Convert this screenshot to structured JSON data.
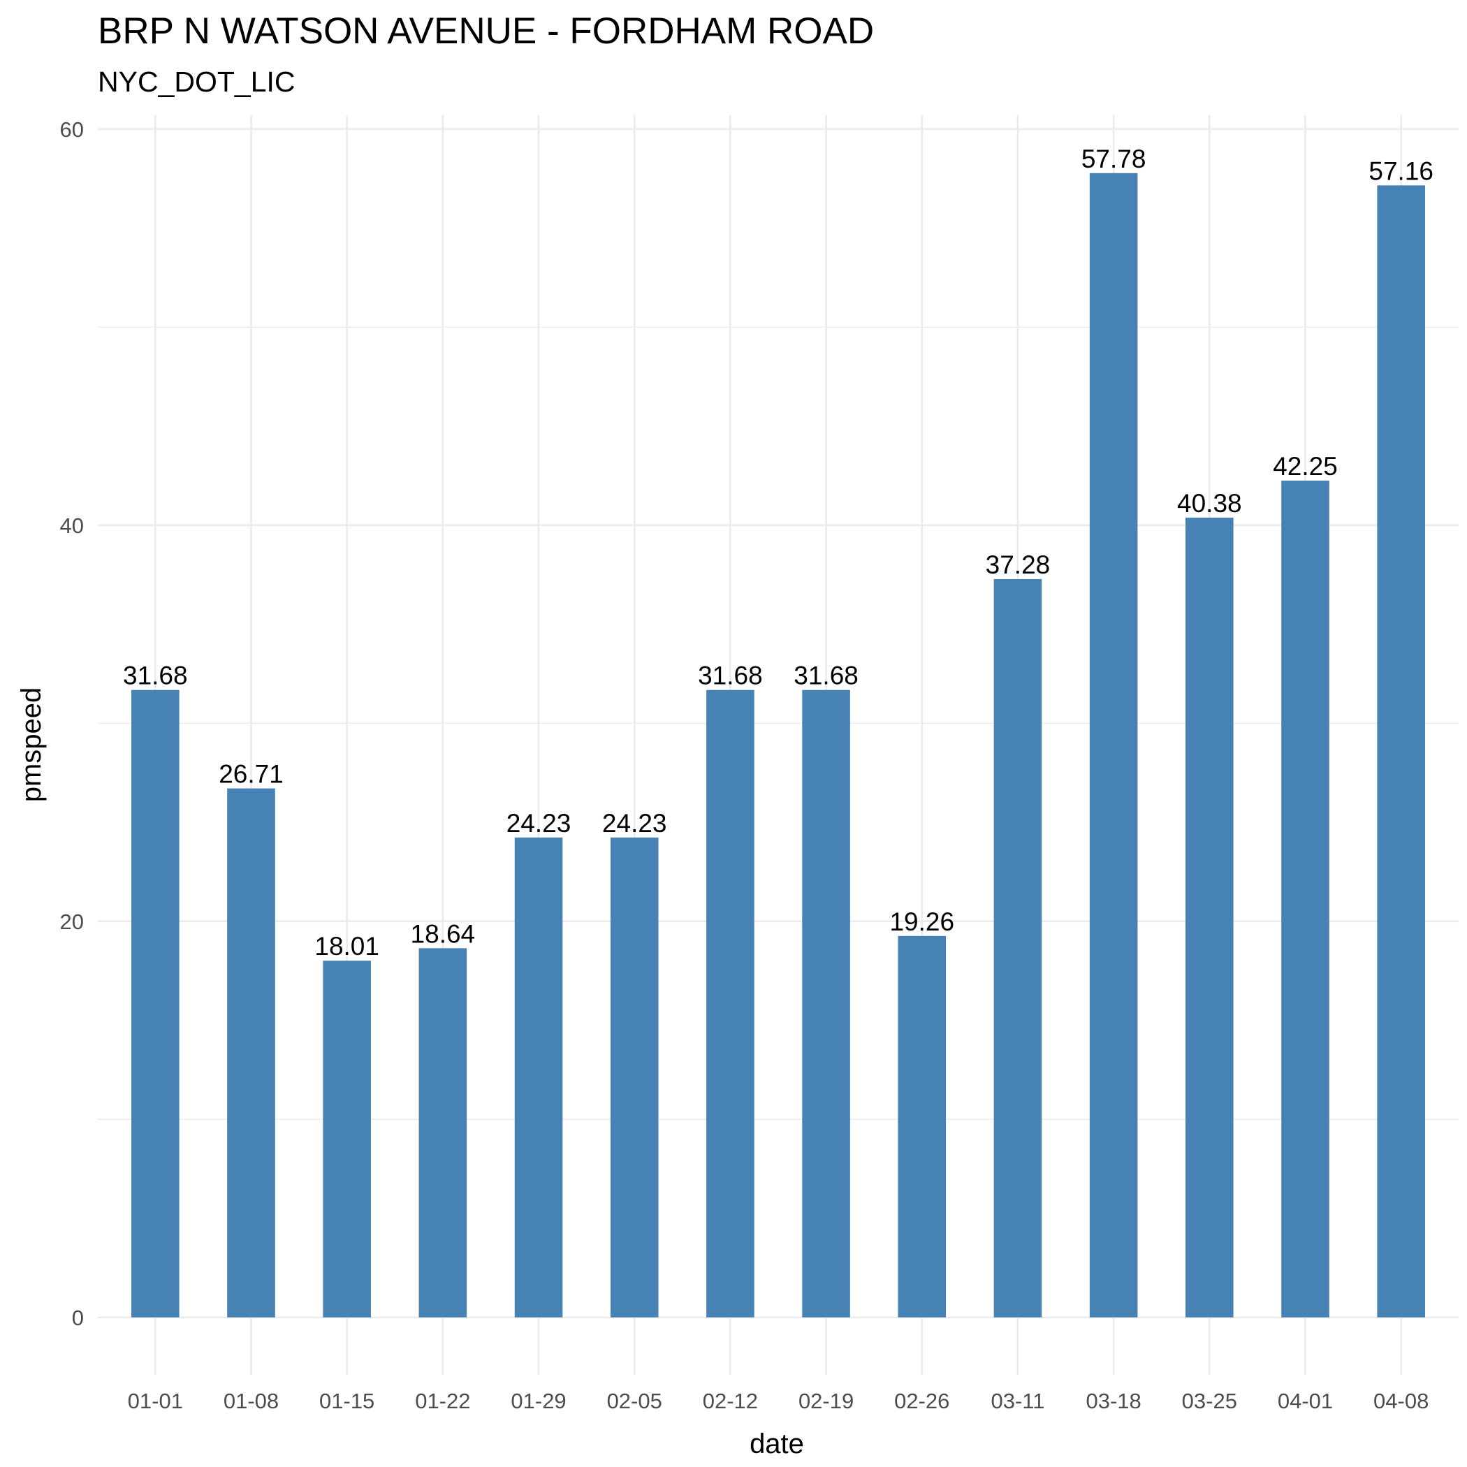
{
  "chart_data": {
    "type": "bar",
    "title": "BRP N WATSON AVENUE - FORDHAM ROAD",
    "subtitle": "NYC_DOT_LIC",
    "xlabel": "date",
    "ylabel": "pmspeed",
    "categories": [
      "01-01",
      "01-08",
      "01-15",
      "01-22",
      "01-29",
      "02-05",
      "02-12",
      "02-19",
      "02-26",
      "03-11",
      "03-18",
      "03-25",
      "04-01",
      "04-08"
    ],
    "values": [
      31.68,
      26.71,
      18.01,
      18.64,
      24.23,
      24.23,
      31.68,
      31.68,
      19.26,
      37.28,
      57.78,
      40.38,
      42.25,
      57.16
    ],
    "data_labels": [
      "31.68",
      "26.71",
      "18.01",
      "18.64",
      "24.23",
      "24.23",
      "31.68",
      "31.68",
      "19.26",
      "37.28",
      "57.78",
      "40.38",
      "42.25",
      "57.16"
    ],
    "yticks": [
      "0",
      "20",
      "40",
      "60"
    ],
    "ylim": [
      -2.9,
      60.7
    ],
    "grid": true,
    "legend": "none",
    "bar_color": "#4682B4",
    "grid_color": "#ebebeb"
  }
}
